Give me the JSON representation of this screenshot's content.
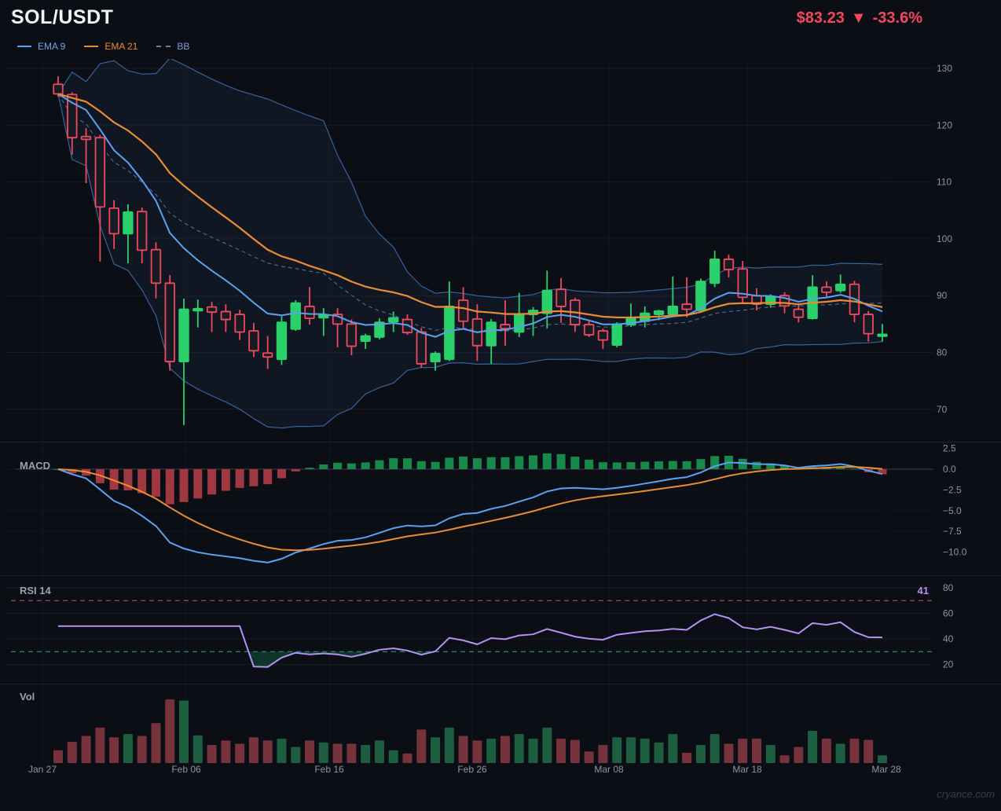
{
  "header": {
    "symbol": "SOL/USDT",
    "price": "$83.23",
    "direction_icon": "▼",
    "change": "-33.6%"
  },
  "legend": {
    "items": [
      {
        "label": "EMA 9",
        "color": "#5aa2f0",
        "style": "solid"
      },
      {
        "label": "EMA 21",
        "color": "#ea8c33",
        "style": "solid"
      },
      {
        "label": "BB",
        "color": "#5b82c4",
        "style": "dashed"
      }
    ]
  },
  "panels": {
    "macd": {
      "label": "MACD",
      "ytick_labels": [
        "2.5",
        "0.0",
        "−2.5",
        "−5.0",
        "−7.5",
        "−10.0"
      ],
      "ytick_values": [
        2.5,
        0,
        -2.5,
        -5,
        -7.5,
        -10
      ]
    },
    "rsi": {
      "label": "RSI 14",
      "value": "41",
      "overbought": 70,
      "oversold": 30,
      "ytick_labels": [
        "80",
        "60",
        "40",
        "20"
      ],
      "ytick_values": [
        80,
        60,
        40,
        20
      ]
    },
    "volume": {
      "label": "Vol"
    }
  },
  "watermark": "cryance.com",
  "colors": {
    "background": "#0b0e15",
    "candle_up": "#2ad06a",
    "candle_down": "#f1485f",
    "ema9": "#5aa2f0",
    "ema21": "#ea8c33",
    "bollinger": "#34639f",
    "macd_hist_up": "#178a4b",
    "macd_hist_down": "#a03842",
    "rsi_line": "#b491f2",
    "price_text": "#f4465d",
    "axis_text": "#8b93a5",
    "vol_up": "#1d5e41",
    "vol_down": "#76333c"
  },
  "chart_data": {
    "type": "candlestick",
    "title": "SOL/USDT daily with EMA9, EMA21, Bollinger(20,2), MACD(12,26,9), RSI(14), Volume",
    "main_ylim": [
      66,
      133
    ],
    "main_yticks": [
      130,
      120,
      110,
      100,
      90,
      80,
      70
    ],
    "x_axis": {
      "tick_labels": [
        "Jan 27",
        "Feb 06",
        "Feb 16",
        "Feb 26",
        "Mar 08",
        "Mar 18",
        "Mar 28"
      ],
      "tick_x": [
        54,
        237,
        419,
        601,
        775,
        951,
        1128
      ]
    },
    "indicators_note": "ema9, ema21, bollinger(20,2), macd(12,26,9) and rsi14 series are derived from the candle closes below; rsi shows 50 during its 14-bar warmup",
    "volume_scale": "relative 0-100",
    "candles": [
      {
        "date": "Jan 27",
        "o": 127.2,
        "h": 128.6,
        "l": 125.0,
        "c": 125.5,
        "v": 20
      },
      {
        "date": "Jan 28",
        "o": 125.4,
        "h": 125.8,
        "l": 114.8,
        "c": 117.8,
        "v": 33
      },
      {
        "date": "Jan 29",
        "o": 118.0,
        "h": 119.5,
        "l": 109.8,
        "c": 117.5,
        "v": 42
      },
      {
        "date": "Jan 30",
        "o": 117.8,
        "h": 118.3,
        "l": 96.0,
        "c": 105.6,
        "v": 55
      },
      {
        "date": "Jan 31",
        "o": 105.4,
        "h": 106.8,
        "l": 98.2,
        "c": 100.9,
        "v": 40
      },
      {
        "date": "Feb 01",
        "o": 100.9,
        "h": 106.1,
        "l": 95.7,
        "c": 104.7,
        "v": 45
      },
      {
        "date": "Feb 02",
        "o": 104.8,
        "h": 105.5,
        "l": 95.7,
        "c": 98.0,
        "v": 42
      },
      {
        "date": "Feb 03",
        "o": 98.1,
        "h": 99.4,
        "l": 89.5,
        "c": 92.2,
        "v": 62
      },
      {
        "date": "Feb 04",
        "o": 92.2,
        "h": 93.6,
        "l": 76.8,
        "c": 78.4,
        "v": 99
      },
      {
        "date": "Feb 05",
        "o": 78.4,
        "h": 89.5,
        "l": 67.2,
        "c": 87.6,
        "v": 97
      },
      {
        "date": "Feb 06",
        "o": 87.7,
        "h": 89.3,
        "l": 84.4,
        "c": 87.7,
        "v": 43
      },
      {
        "date": "Feb 07",
        "o": 88.0,
        "h": 88.9,
        "l": 83.6,
        "c": 87.1,
        "v": 28
      },
      {
        "date": "Feb 08",
        "o": 87.2,
        "h": 88.5,
        "l": 83.6,
        "c": 85.8,
        "v": 35
      },
      {
        "date": "Feb 09",
        "o": 86.7,
        "h": 87.5,
        "l": 82.2,
        "c": 83.6,
        "v": 30
      },
      {
        "date": "Feb 10",
        "o": 83.8,
        "h": 85.2,
        "l": 79.2,
        "c": 80.3,
        "v": 40
      },
      {
        "date": "Feb 11",
        "o": 79.9,
        "h": 82.9,
        "l": 77.1,
        "c": 79.2,
        "v": 35
      },
      {
        "date": "Feb 12",
        "o": 78.8,
        "h": 86.4,
        "l": 77.8,
        "c": 85.3,
        "v": 38
      },
      {
        "date": "Feb 13",
        "o": 84.1,
        "h": 89.2,
        "l": 83.8,
        "c": 88.7,
        "v": 25
      },
      {
        "date": "Feb 14",
        "o": 88.1,
        "h": 91.5,
        "l": 84.9,
        "c": 86.0,
        "v": 35
      },
      {
        "date": "Feb 15",
        "o": 86.1,
        "h": 87.8,
        "l": 82.9,
        "c": 86.6,
        "v": 32
      },
      {
        "date": "Feb 16",
        "o": 86.7,
        "h": 87.8,
        "l": 80.9,
        "c": 85.0,
        "v": 30
      },
      {
        "date": "Feb 17",
        "o": 85.0,
        "h": 85.8,
        "l": 79.5,
        "c": 81.1,
        "v": 30
      },
      {
        "date": "Feb 18",
        "o": 82.0,
        "h": 83.3,
        "l": 80.6,
        "c": 82.9,
        "v": 28
      },
      {
        "date": "Feb 19",
        "o": 82.7,
        "h": 86.0,
        "l": 82.3,
        "c": 85.3,
        "v": 35
      },
      {
        "date": "Feb 20",
        "o": 85.4,
        "h": 87.2,
        "l": 83.6,
        "c": 86.1,
        "v": 20
      },
      {
        "date": "Feb 21",
        "o": 85.8,
        "h": 86.7,
        "l": 83.1,
        "c": 83.5,
        "v": 15
      },
      {
        "date": "Feb 22",
        "o": 83.6,
        "h": 84.3,
        "l": 77.3,
        "c": 78.0,
        "v": 52
      },
      {
        "date": "Feb 23",
        "o": 78.4,
        "h": 80.2,
        "l": 76.8,
        "c": 79.8,
        "v": 40
      },
      {
        "date": "Feb 24",
        "o": 78.8,
        "h": 92.5,
        "l": 78.5,
        "c": 88.1,
        "v": 55
      },
      {
        "date": "Feb 25",
        "o": 89.2,
        "h": 91.5,
        "l": 84.3,
        "c": 85.5,
        "v": 42
      },
      {
        "date": "Feb 26",
        "o": 85.9,
        "h": 88.5,
        "l": 78.5,
        "c": 81.2,
        "v": 35
      },
      {
        "date": "Feb 27",
        "o": 81.2,
        "h": 85.9,
        "l": 78.0,
        "c": 85.3,
        "v": 38
      },
      {
        "date": "Feb 28",
        "o": 84.9,
        "h": 89.2,
        "l": 81.2,
        "c": 84.2,
        "v": 42
      },
      {
        "date": "Mar 01",
        "o": 83.6,
        "h": 90.5,
        "l": 82.7,
        "c": 86.7,
        "v": 45
      },
      {
        "date": "Mar 02",
        "o": 86.7,
        "h": 88.0,
        "l": 82.9,
        "c": 87.4,
        "v": 38
      },
      {
        "date": "Mar 03",
        "o": 86.9,
        "h": 94.4,
        "l": 84.2,
        "c": 90.9,
        "v": 55
      },
      {
        "date": "Mar 04",
        "o": 91.1,
        "h": 93.1,
        "l": 85.2,
        "c": 88.1,
        "v": 38
      },
      {
        "date": "Mar 05",
        "o": 89.2,
        "h": 89.6,
        "l": 83.6,
        "c": 84.9,
        "v": 36
      },
      {
        "date": "Mar 06",
        "o": 84.9,
        "h": 85.5,
        "l": 82.7,
        "c": 83.1,
        "v": 18
      },
      {
        "date": "Mar 07",
        "o": 83.8,
        "h": 84.2,
        "l": 80.6,
        "c": 82.2,
        "v": 28
      },
      {
        "date": "Mar 08",
        "o": 81.3,
        "h": 85.3,
        "l": 80.9,
        "c": 85.0,
        "v": 40
      },
      {
        "date": "Mar 09",
        "o": 84.9,
        "h": 88.6,
        "l": 84.5,
        "c": 86.0,
        "v": 40
      },
      {
        "date": "Mar 10",
        "o": 85.5,
        "h": 88.1,
        "l": 84.4,
        "c": 86.9,
        "v": 38
      },
      {
        "date": "Mar 11",
        "o": 86.7,
        "h": 87.5,
        "l": 85.7,
        "c": 87.3,
        "v": 32
      },
      {
        "date": "Mar 12",
        "o": 86.7,
        "h": 93.4,
        "l": 86.3,
        "c": 88.1,
        "v": 45
      },
      {
        "date": "Mar 13",
        "o": 88.5,
        "h": 93.2,
        "l": 86.2,
        "c": 87.6,
        "v": 16
      },
      {
        "date": "Mar 14",
        "o": 87.4,
        "h": 93.0,
        "l": 87.0,
        "c": 92.5,
        "v": 28
      },
      {
        "date": "Mar 15",
        "o": 92.2,
        "h": 97.9,
        "l": 91.5,
        "c": 96.4,
        "v": 45
      },
      {
        "date": "Mar 16",
        "o": 96.4,
        "h": 97.2,
        "l": 93.2,
        "c": 94.6,
        "v": 30
      },
      {
        "date": "Mar 17",
        "o": 94.7,
        "h": 96.1,
        "l": 88.5,
        "c": 89.7,
        "v": 38
      },
      {
        "date": "Mar 18",
        "o": 90.0,
        "h": 91.3,
        "l": 87.4,
        "c": 88.5,
        "v": 38
      },
      {
        "date": "Mar 19",
        "o": 88.5,
        "h": 90.2,
        "l": 87.9,
        "c": 89.8,
        "v": 28
      },
      {
        "date": "Mar 20",
        "o": 90.0,
        "h": 90.6,
        "l": 86.9,
        "c": 88.2,
        "v": 12
      },
      {
        "date": "Mar 21",
        "o": 87.6,
        "h": 88.5,
        "l": 85.3,
        "c": 86.2,
        "v": 25
      },
      {
        "date": "Mar 22",
        "o": 86.0,
        "h": 93.6,
        "l": 85.8,
        "c": 91.5,
        "v": 50
      },
      {
        "date": "Mar 23",
        "o": 91.5,
        "h": 92.5,
        "l": 89.7,
        "c": 90.6,
        "v": 38
      },
      {
        "date": "Mar 24",
        "o": 90.9,
        "h": 93.7,
        "l": 90.5,
        "c": 92.0,
        "v": 30
      },
      {
        "date": "Mar 25",
        "o": 92.0,
        "h": 92.6,
        "l": 85.3,
        "c": 86.7,
        "v": 38
      },
      {
        "date": "Mar 26",
        "o": 86.7,
        "h": 87.3,
        "l": 81.9,
        "c": 83.3,
        "v": 36
      },
      {
        "date": "Mar 27",
        "o": 83.1,
        "h": 85.0,
        "l": 81.9,
        "c": 83.2,
        "v": 12
      }
    ]
  }
}
